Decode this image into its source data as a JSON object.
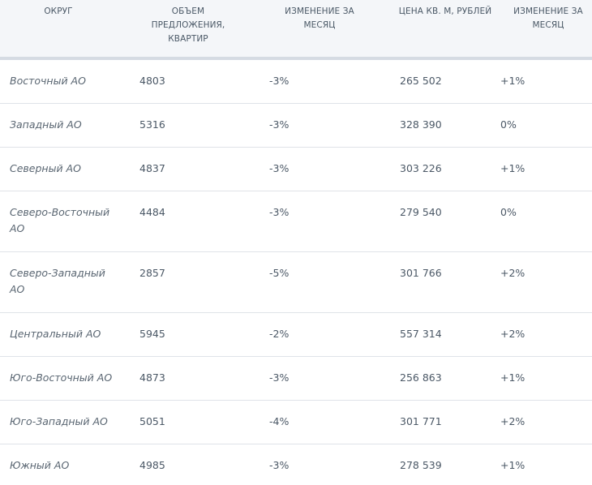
{
  "header": {
    "district": "ОКРУГ",
    "supply": "ОБЪЕМ\nПРЕДЛОЖЕНИЯ,\nКВАРТИР",
    "supply_change": "ИЗМЕНЕНИЕ ЗА\nМЕСЯЦ",
    "price": "ЦЕНА КВ. М, РУБЛЕЙ",
    "price_change": "ИЗМЕНЕНИЕ ЗА\nМЕСЯЦ"
  },
  "rows": [
    {
      "district": "Восточный АО",
      "supply": "4803",
      "supply_change": "-3%",
      "price": "265 502",
      "price_change": "+1%"
    },
    {
      "district": "Западный АО",
      "supply": "5316",
      "supply_change": "-3%",
      "price": "328 390",
      "price_change": "0%"
    },
    {
      "district": "Северный АО",
      "supply": "4837",
      "supply_change": "-3%",
      "price": "303 226",
      "price_change": "+1%"
    },
    {
      "district": "Северо-Восточный АО",
      "supply": "4484",
      "supply_change": "-3%",
      "price": "279 540",
      "price_change": "0%"
    },
    {
      "district": "Северо-Западный АО",
      "supply": "2857",
      "supply_change": "-5%",
      "price": "301 766",
      "price_change": "+2%"
    },
    {
      "district": "Центральный АО",
      "supply": "5945",
      "supply_change": "-2%",
      "price": "557 314",
      "price_change": "+2%"
    },
    {
      "district": "Юго-Восточный АО",
      "supply": "4873",
      "supply_change": "-3%",
      "price": "256 863",
      "price_change": "+1%"
    },
    {
      "district": "Юго-Западный АО",
      "supply": "5051",
      "supply_change": "-4%",
      "price": "301 771",
      "price_change": "+2%"
    },
    {
      "district": "Южный АО",
      "supply": "4985",
      "supply_change": "-3%",
      "price": "278 539",
      "price_change": "+1%"
    }
  ]
}
